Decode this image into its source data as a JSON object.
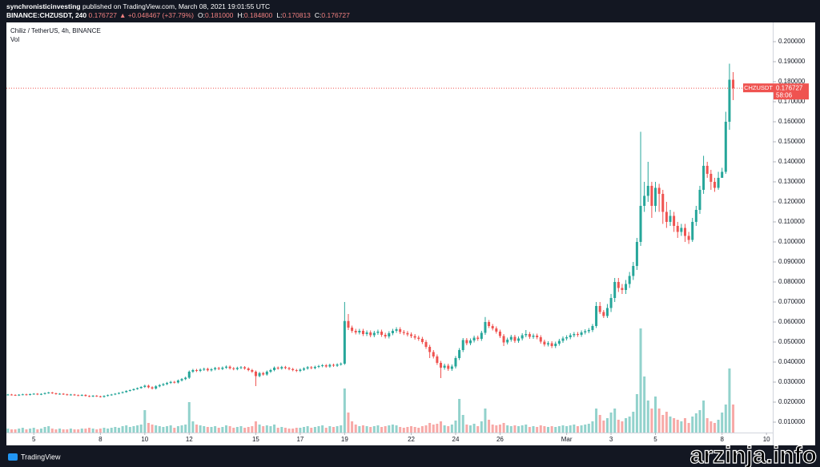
{
  "header": {
    "author": "synchronisticinvesting",
    "published": "published on TradingView.com, March 08, 2021 19:01:55 UTC",
    "symbol": "BINANCE:CHZUSDT, 240",
    "last": "0.176727",
    "change": "▲ +0.048467 (+37.79%)",
    "ohlc": [
      {
        "key": "O:",
        "value": "0.181000"
      },
      {
        "key": "H:",
        "value": "0.184800"
      },
      {
        "key": "L:",
        "value": "0.170813"
      },
      {
        "key": "C:",
        "value": "0.176727"
      }
    ]
  },
  "chart_data": {
    "type": "candlestick",
    "title": "Chiliz / TetherUS, 4h, BINANCE",
    "volume_label": "Vol",
    "up_color": "#26a69a",
    "down_color": "#ef5350",
    "grid": false,
    "xlim": [
      -0.4,
      206.7
    ],
    "xticks": [
      {
        "value": 7,
        "label": "5"
      },
      {
        "value": 25,
        "label": "8"
      },
      {
        "value": 37,
        "label": "10"
      },
      {
        "value": 49,
        "label": "12"
      },
      {
        "value": 67,
        "label": "15"
      },
      {
        "value": 79,
        "label": "17"
      },
      {
        "value": 91,
        "label": "19"
      },
      {
        "value": 109,
        "label": "22"
      },
      {
        "value": 121,
        "label": "24"
      },
      {
        "value": 133,
        "label": "26"
      },
      {
        "value": 151,
        "label": "Mar"
      },
      {
        "value": 163,
        "label": "3"
      },
      {
        "value": 175,
        "label": "5"
      },
      {
        "value": 193,
        "label": "8"
      },
      {
        "value": 205,
        "label": "10"
      }
    ],
    "ylim": [
      0.0048,
      0.2096
    ],
    "yticks": [
      {
        "value": 0.01,
        "label": "0.010000"
      },
      {
        "value": 0.02,
        "label": "0.020000"
      },
      {
        "value": 0.03,
        "label": "0.030000"
      },
      {
        "value": 0.04,
        "label": "0.040000"
      },
      {
        "value": 0.05,
        "label": "0.050000"
      },
      {
        "value": 0.06,
        "label": "0.060000"
      },
      {
        "value": 0.07,
        "label": "0.070000"
      },
      {
        "value": 0.08,
        "label": "0.080000"
      },
      {
        "value": 0.09,
        "label": "0.090000"
      },
      {
        "value": 0.1,
        "label": "0.100000"
      },
      {
        "value": 0.11,
        "label": "0.110000"
      },
      {
        "value": 0.12,
        "label": "0.120000"
      },
      {
        "value": 0.13,
        "label": "0.130000"
      },
      {
        "value": 0.14,
        "label": "0.140000"
      },
      {
        "value": 0.15,
        "label": "0.150000"
      },
      {
        "value": 0.16,
        "label": "0.160000"
      },
      {
        "value": 0.17,
        "label": "0.170000"
      },
      {
        "value": 0.18,
        "label": "0.180000"
      },
      {
        "value": 0.19,
        "label": "0.190000"
      },
      {
        "value": 0.2,
        "label": "0.200000"
      }
    ],
    "vlim": [
      0,
      512
    ],
    "price_line": {
      "symbol": "CHZUSDT",
      "value": 0.176727,
      "label": "0.176727",
      "countdown": "58:06",
      "color": "#ef5350"
    },
    "open": [
      0.0236,
      0.0238,
      0.0236,
      0.0234,
      0.0237,
      0.0239,
      0.0236,
      0.024,
      0.0242,
      0.0238,
      0.0241,
      0.0245,
      0.0248,
      0.0244,
      0.024,
      0.0242,
      0.0239,
      0.0236,
      0.0238,
      0.0235,
      0.0233,
      0.0236,
      0.0231,
      0.0228,
      0.0232,
      0.0229,
      0.0226,
      0.0231,
      0.0235,
      0.0238,
      0.0242,
      0.0246,
      0.025,
      0.0256,
      0.026,
      0.0265,
      0.027,
      0.0276,
      0.0282,
      0.0274,
      0.0268,
      0.0279,
      0.0285,
      0.029,
      0.0296,
      0.0301,
      0.0298,
      0.0308,
      0.0315,
      0.0322,
      0.0352,
      0.036,
      0.0356,
      0.0362,
      0.0366,
      0.0359,
      0.0364,
      0.037,
      0.0366,
      0.0372,
      0.0377,
      0.0369,
      0.0365,
      0.0371,
      0.0374,
      0.0368,
      0.036,
      0.0352,
      0.033,
      0.0345,
      0.0338,
      0.0352,
      0.036,
      0.0372,
      0.0368,
      0.0375,
      0.037,
      0.0365,
      0.036,
      0.0356,
      0.0362,
      0.0368,
      0.0374,
      0.037,
      0.0376,
      0.038,
      0.0384,
      0.0378,
      0.0386,
      0.0382,
      0.0388,
      0.0392,
      0.0605,
      0.0572,
      0.0556,
      0.0548,
      0.0556,
      0.054,
      0.0548,
      0.0534,
      0.0546,
      0.0552,
      0.0536,
      0.0528,
      0.0544,
      0.0556,
      0.0564,
      0.055,
      0.0545,
      0.0538,
      0.053,
      0.0522,
      0.0516,
      0.05,
      0.0476,
      0.045,
      0.0428,
      0.0396,
      0.0372,
      0.0382,
      0.0366,
      0.0378,
      0.042,
      0.046,
      0.051,
      0.0494,
      0.0508,
      0.0522,
      0.0516,
      0.0546,
      0.06,
      0.058,
      0.0568,
      0.0552,
      0.053,
      0.0498,
      0.0512,
      0.0526,
      0.0506,
      0.0518,
      0.0534,
      0.054,
      0.0526,
      0.0532,
      0.0524,
      0.0502,
      0.0488,
      0.0494,
      0.048,
      0.0492,
      0.0506,
      0.0518,
      0.0524,
      0.0534,
      0.054,
      0.0536,
      0.0548,
      0.0554,
      0.056,
      0.058,
      0.068,
      0.065,
      0.063,
      0.067,
      0.072,
      0.08,
      0.077,
      0.076,
      0.079,
      0.083,
      0.088,
      0.1,
      0.118,
      0.123,
      0.128,
      0.118,
      0.127,
      0.124,
      0.115,
      0.11,
      0.113,
      0.108,
      0.105,
      0.107,
      0.103,
      0.101,
      0.11,
      0.116,
      0.126,
      0.138,
      0.134,
      0.13,
      0.127,
      0.132,
      0.135,
      0.16,
      0.181
    ],
    "high": [
      0.0241,
      0.0241,
      0.0239,
      0.024,
      0.0242,
      0.0242,
      0.0243,
      0.0245,
      0.0245,
      0.0244,
      0.0248,
      0.0251,
      0.0251,
      0.0247,
      0.0245,
      0.0245,
      0.0242,
      0.0241,
      0.0241,
      0.0238,
      0.0239,
      0.0239,
      0.0234,
      0.0235,
      0.0235,
      0.0232,
      0.0234,
      0.0238,
      0.0241,
      0.0245,
      0.0249,
      0.0253,
      0.0259,
      0.0263,
      0.0268,
      0.0273,
      0.0279,
      0.0287,
      0.0287,
      0.0279,
      0.0284,
      0.029,
      0.0295,
      0.0301,
      0.0306,
      0.0306,
      0.0313,
      0.032,
      0.0327,
      0.0358,
      0.0366,
      0.0366,
      0.0368,
      0.0372,
      0.0372,
      0.037,
      0.0376,
      0.0376,
      0.0378,
      0.0383,
      0.0383,
      0.0375,
      0.0377,
      0.038,
      0.038,
      0.0374,
      0.0366,
      0.0358,
      0.0351,
      0.0351,
      0.0358,
      0.0366,
      0.0378,
      0.0378,
      0.0381,
      0.0381,
      0.0376,
      0.0371,
      0.0366,
      0.0368,
      0.0374,
      0.038,
      0.038,
      0.0382,
      0.0386,
      0.039,
      0.039,
      0.0392,
      0.0392,
      0.0394,
      0.0398,
      0.07,
      0.064,
      0.0582,
      0.0566,
      0.0566,
      0.0566,
      0.0558,
      0.0558,
      0.0556,
      0.0562,
      0.0562,
      0.0546,
      0.0554,
      0.0566,
      0.0574,
      0.0574,
      0.056,
      0.0555,
      0.0548,
      0.054,
      0.0532,
      0.0526,
      0.051,
      0.0486,
      0.046,
      0.0438,
      0.0406,
      0.0392,
      0.0392,
      0.0388,
      0.043,
      0.047,
      0.052,
      0.052,
      0.0518,
      0.0532,
      0.0532,
      0.0556,
      0.0625,
      0.061,
      0.059,
      0.0578,
      0.0562,
      0.054,
      0.0522,
      0.0536,
      0.0536,
      0.0528,
      0.0544,
      0.056,
      0.055,
      0.0542,
      0.0542,
      0.0534,
      0.0512,
      0.0504,
      0.0504,
      0.0502,
      0.0516,
      0.0528,
      0.0534,
      0.0544,
      0.055,
      0.055,
      0.0558,
      0.0564,
      0.057,
      0.059,
      0.07,
      0.07,
      0.066,
      0.069,
      0.074,
      0.082,
      0.082,
      0.079,
      0.081,
      0.085,
      0.09,
      0.102,
      0.155,
      0.13,
      0.14,
      0.13,
      0.13,
      0.129,
      0.126,
      0.12,
      0.116,
      0.115,
      0.11,
      0.109,
      0.109,
      0.105,
      0.112,
      0.118,
      0.128,
      0.143,
      0.14,
      0.136,
      0.132,
      0.135,
      0.137,
      0.165,
      0.189,
      0.1848
    ],
    "low": [
      0.0233,
      0.0233,
      0.0231,
      0.0231,
      0.0234,
      0.0233,
      0.0233,
      0.0237,
      0.0235,
      0.0235,
      0.0238,
      0.0242,
      0.0241,
      0.0237,
      0.0237,
      0.0236,
      0.0233,
      0.0233,
      0.0232,
      0.023,
      0.023,
      0.0228,
      0.0225,
      0.0225,
      0.0226,
      0.0223,
      0.0223,
      0.0228,
      0.0232,
      0.0235,
      0.0239,
      0.0243,
      0.0247,
      0.0253,
      0.0257,
      0.0262,
      0.0267,
      0.0271,
      0.0269,
      0.0263,
      0.0263,
      0.0274,
      0.028,
      0.0285,
      0.0291,
      0.0293,
      0.0293,
      0.0303,
      0.031,
      0.0316,
      0.0346,
      0.035,
      0.035,
      0.0356,
      0.0353,
      0.0353,
      0.0358,
      0.036,
      0.036,
      0.0366,
      0.0363,
      0.0359,
      0.0359,
      0.0365,
      0.0362,
      0.0354,
      0.0346,
      0.028,
      0.0324,
      0.0332,
      0.0332,
      0.0346,
      0.0354,
      0.0362,
      0.0362,
      0.0364,
      0.0359,
      0.0354,
      0.035,
      0.035,
      0.0356,
      0.0362,
      0.0364,
      0.0364,
      0.037,
      0.0374,
      0.0372,
      0.0372,
      0.0376,
      0.0376,
      0.0382,
      0.0386,
      0.056,
      0.0546,
      0.0538,
      0.0538,
      0.053,
      0.053,
      0.0524,
      0.0524,
      0.0536,
      0.0526,
      0.0518,
      0.0518,
      0.0534,
      0.0546,
      0.054,
      0.0535,
      0.0528,
      0.052,
      0.0512,
      0.0506,
      0.049,
      0.0466,
      0.042,
      0.0418,
      0.0386,
      0.032,
      0.0362,
      0.0356,
      0.0356,
      0.0368,
      0.041,
      0.045,
      0.0484,
      0.0484,
      0.0498,
      0.0506,
      0.0506,
      0.0536,
      0.057,
      0.0558,
      0.0542,
      0.052,
      0.048,
      0.0488,
      0.0502,
      0.0496,
      0.0496,
      0.0508,
      0.0524,
      0.0516,
      0.0516,
      0.0514,
      0.0492,
      0.0478,
      0.0478,
      0.047,
      0.047,
      0.0482,
      0.0496,
      0.0508,
      0.0514,
      0.0524,
      0.0526,
      0.0526,
      0.0538,
      0.0544,
      0.055,
      0.057,
      0.064,
      0.062,
      0.062,
      0.065,
      0.07,
      0.075,
      0.074,
      0.074,
      0.077,
      0.081,
      0.086,
      0.098,
      0.115,
      0.12,
      0.112,
      0.115,
      0.115,
      0.109,
      0.107,
      0.108,
      0.105,
      0.102,
      0.103,
      0.1,
      0.099,
      0.1,
      0.108,
      0.114,
      0.124,
      0.132,
      0.126,
      0.125,
      0.126,
      0.132,
      0.134,
      0.156,
      0.170813
    ],
    "close": [
      0.0238,
      0.0236,
      0.0234,
      0.0237,
      0.0239,
      0.0236,
      0.024,
      0.0242,
      0.0238,
      0.0241,
      0.0245,
      0.0248,
      0.0244,
      0.024,
      0.0242,
      0.0239,
      0.0236,
      0.0238,
      0.0235,
      0.0233,
      0.0236,
      0.0231,
      0.0228,
      0.0232,
      0.0229,
      0.0226,
      0.0231,
      0.0235,
      0.0238,
      0.0242,
      0.0246,
      0.025,
      0.0256,
      0.026,
      0.0265,
      0.027,
      0.0276,
      0.0282,
      0.0274,
      0.0268,
      0.0279,
      0.0285,
      0.029,
      0.0296,
      0.0301,
      0.0298,
      0.0308,
      0.0315,
      0.0322,
      0.0352,
      0.036,
      0.0356,
      0.0362,
      0.0366,
      0.0359,
      0.0364,
      0.037,
      0.0366,
      0.0372,
      0.0377,
      0.0369,
      0.0365,
      0.0371,
      0.0374,
      0.0368,
      0.036,
      0.0352,
      0.033,
      0.0345,
      0.0338,
      0.0352,
      0.036,
      0.0372,
      0.0368,
      0.0375,
      0.037,
      0.0365,
      0.036,
      0.0356,
      0.0362,
      0.0368,
      0.0374,
      0.037,
      0.0376,
      0.038,
      0.0384,
      0.0378,
      0.0386,
      0.0382,
      0.0388,
      0.0392,
      0.0605,
      0.0572,
      0.0556,
      0.0548,
      0.0556,
      0.054,
      0.0548,
      0.0534,
      0.0546,
      0.0552,
      0.0536,
      0.0528,
      0.0544,
      0.0556,
      0.0564,
      0.055,
      0.0545,
      0.0538,
      0.053,
      0.0522,
      0.0516,
      0.05,
      0.0476,
      0.045,
      0.0428,
      0.0396,
      0.0372,
      0.0382,
      0.0366,
      0.0378,
      0.042,
      0.046,
      0.051,
      0.0494,
      0.0508,
      0.0522,
      0.0516,
      0.0546,
      0.06,
      0.058,
      0.0568,
      0.0552,
      0.053,
      0.0498,
      0.0512,
      0.0526,
      0.0506,
      0.0518,
      0.0534,
      0.054,
      0.0526,
      0.0532,
      0.0524,
      0.0502,
      0.0488,
      0.0494,
      0.048,
      0.0492,
      0.0506,
      0.0518,
      0.0524,
      0.0534,
      0.054,
      0.0536,
      0.0548,
      0.0554,
      0.056,
      0.058,
      0.068,
      0.065,
      0.063,
      0.067,
      0.072,
      0.08,
      0.077,
      0.076,
      0.079,
      0.083,
      0.088,
      0.1,
      0.118,
      0.123,
      0.128,
      0.118,
      0.127,
      0.124,
      0.115,
      0.11,
      0.113,
      0.108,
      0.105,
      0.107,
      0.103,
      0.101,
      0.11,
      0.116,
      0.126,
      0.138,
      0.134,
      0.13,
      0.127,
      0.132,
      0.135,
      0.16,
      0.181,
      0.176727
    ],
    "volume": [
      5,
      4,
      4,
      5,
      6,
      4,
      5,
      6,
      4,
      5,
      7,
      8,
      5,
      4,
      5,
      4,
      4,
      5,
      4,
      4,
      5,
      5,
      6,
      5,
      4,
      5,
      6,
      5,
      6,
      7,
      6,
      8,
      9,
      7,
      8,
      9,
      10,
      28,
      12,
      10,
      9,
      8,
      7,
      8,
      9,
      6,
      8,
      9,
      10,
      38,
      14,
      10,
      9,
      8,
      7,
      7,
      8,
      6,
      7,
      9,
      8,
      6,
      7,
      8,
      6,
      7,
      8,
      14,
      10,
      8,
      9,
      8,
      10,
      6,
      7,
      6,
      5,
      5,
      6,
      6,
      7,
      8,
      6,
      7,
      8,
      9,
      6,
      8,
      7,
      8,
      9,
      55,
      25,
      14,
      10,
      8,
      9,
      8,
      7,
      8,
      9,
      7,
      8,
      9,
      10,
      9,
      7,
      6,
      7,
      8,
      7,
      6,
      8,
      9,
      12,
      10,
      11,
      14,
      9,
      8,
      10,
      15,
      42,
      22,
      10,
      9,
      11,
      8,
      14,
      30,
      16,
      10,
      9,
      10,
      12,
      9,
      8,
      9,
      8,
      9,
      10,
      7,
      8,
      7,
      9,
      8,
      7,
      8,
      7,
      8,
      9,
      8,
      9,
      10,
      8,
      9,
      10,
      11,
      14,
      30,
      22,
      15,
      18,
      25,
      30,
      16,
      14,
      18,
      20,
      26,
      48,
      130,
      70,
      40,
      30,
      45,
      30,
      22,
      26,
      20,
      18,
      16,
      14,
      18,
      12,
      20,
      24,
      28,
      40,
      18,
      14,
      12,
      16,
      25,
      35,
      80,
      35
    ]
  },
  "footer": {
    "brand": "TradingView",
    "watermark": "arzinja.info"
  }
}
